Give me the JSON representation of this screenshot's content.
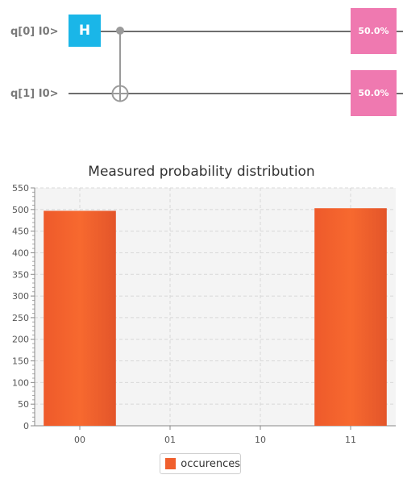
{
  "circuit": {
    "qubits": [
      {
        "label": "q[0] I0>",
        "measurement": "50.0%"
      },
      {
        "label": "q[1] I0>",
        "measurement": "50.0%"
      }
    ],
    "gates": [
      {
        "type": "H",
        "label": "H",
        "qubit": 0
      },
      {
        "type": "CNOT",
        "control": 0,
        "target": 1
      }
    ],
    "colors": {
      "h_gate": "#1ab6e8",
      "measure": "#ef79b0",
      "wire": "#6e6e6e"
    }
  },
  "chart_data": {
    "type": "bar",
    "title": "Measured probability distribution",
    "categories": [
      "00",
      "01",
      "10",
      "11"
    ],
    "series": [
      {
        "name": "occurences",
        "values": [
          497,
          0,
          0,
          503
        ]
      }
    ],
    "ylim": [
      0,
      550
    ],
    "yticks": [
      0,
      50,
      100,
      150,
      200,
      250,
      300,
      350,
      400,
      450,
      500,
      550
    ],
    "grid": true,
    "legend": "bottom-center",
    "colors": {
      "bar": "#f05f2d",
      "plot_bg": "#f4f4f4"
    }
  }
}
